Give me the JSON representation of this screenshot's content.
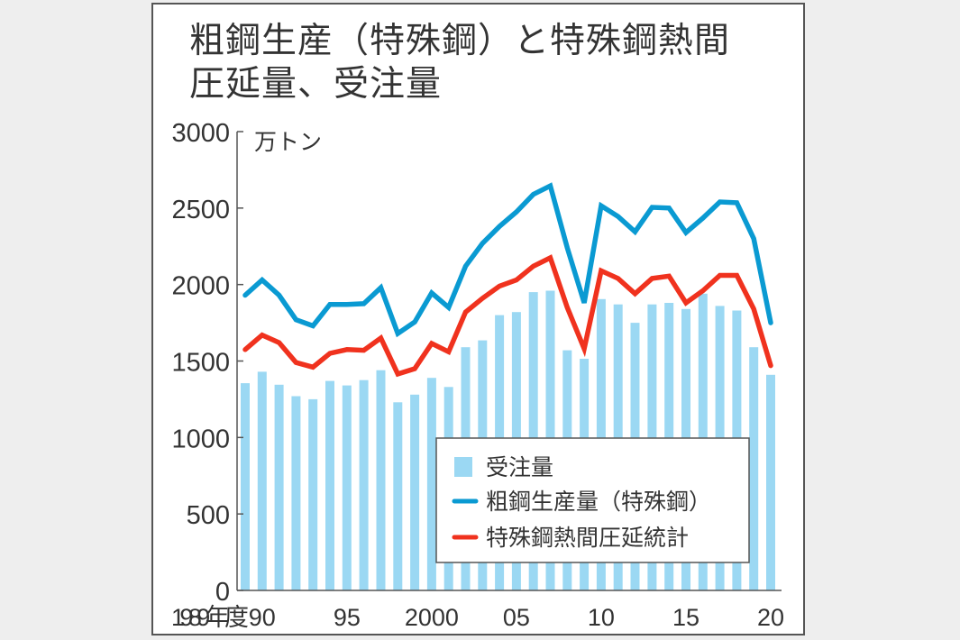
{
  "title_lines": [
    "粗鋼生産（特殊鋼）と特殊鋼熱間",
    "圧延量、受注量"
  ],
  "chart_data": {
    "type": "bar+line",
    "title": "粗鋼生産（特殊鋼）と特殊鋼熱間圧延量、受注量",
    "unit": "万トン",
    "xlabel": "年度",
    "ylim": [
      0,
      3000
    ],
    "yticks": [
      0,
      500,
      1000,
      1500,
      2000,
      2500,
      3000
    ],
    "x": [
      1989,
      1990,
      1991,
      1992,
      1993,
      1994,
      1995,
      1996,
      1997,
      1998,
      1999,
      2000,
      2001,
      2002,
      2003,
      2004,
      2005,
      2006,
      2007,
      2008,
      2009,
      2010,
      2011,
      2012,
      2013,
      2014,
      2015,
      2016,
      2017,
      2018,
      2019,
      2020
    ],
    "xtick_labels": [
      {
        "x": 1989,
        "label": "1989年度"
      },
      {
        "x": 1990,
        "label": "90"
      },
      {
        "x": 1995,
        "label": "95"
      },
      {
        "x": 2000,
        "label": "2000"
      },
      {
        "x": 2005,
        "label": "05"
      },
      {
        "x": 2010,
        "label": "10"
      },
      {
        "x": 2015,
        "label": "15"
      },
      {
        "x": 2020,
        "label": "20"
      }
    ],
    "series": [
      {
        "name": "受注量",
        "kind": "bar",
        "color": "#9bd8f3",
        "values": [
          1355,
          1430,
          1345,
          1270,
          1250,
          1370,
          1340,
          1375,
          1440,
          1230,
          1280,
          1390,
          1330,
          1590,
          1635,
          1800,
          1820,
          1950,
          1960,
          1570,
          1515,
          1905,
          1870,
          1750,
          1870,
          1880,
          1840,
          1940,
          1860,
          1830,
          1590,
          1410
        ]
      },
      {
        "name": "粗鋼生産量（特殊鋼）",
        "kind": "line",
        "color": "#0a9ad2",
        "values": [
          1930,
          2030,
          1930,
          1770,
          1730,
          1870,
          1870,
          1875,
          1980,
          1680,
          1755,
          1945,
          1850,
          2120,
          2270,
          2380,
          2475,
          2590,
          2645,
          2240,
          1880,
          2515,
          2445,
          2345,
          2505,
          2500,
          2340,
          2435,
          2540,
          2535,
          2300,
          1750
        ]
      },
      {
        "name": "特殊鋼熱間圧延統計",
        "kind": "line",
        "color": "#f0321e",
        "values": [
          1575,
          1670,
          1620,
          1490,
          1460,
          1550,
          1575,
          1570,
          1650,
          1415,
          1450,
          1615,
          1560,
          1820,
          1910,
          1990,
          2030,
          2120,
          2175,
          1850,
          1580,
          2090,
          2040,
          1940,
          2040,
          2055,
          1880,
          1960,
          2060,
          2060,
          1840,
          1470
        ]
      }
    ],
    "legend": {
      "placement": "bottom-right",
      "entries": [
        "受注量",
        "粗鋼生産量（特殊鋼）",
        "特殊鋼熱間圧延統計"
      ]
    }
  }
}
